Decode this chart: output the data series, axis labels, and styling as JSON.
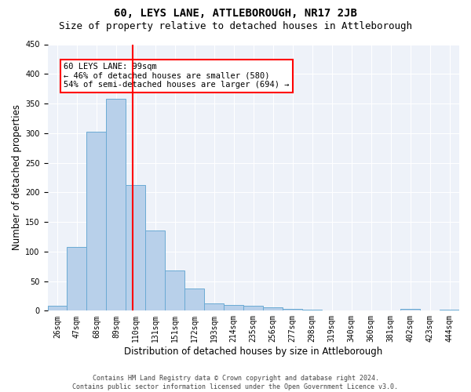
{
  "title": "60, LEYS LANE, ATTLEBOROUGH, NR17 2JB",
  "subtitle": "Size of property relative to detached houses in Attleborough",
  "xlabel": "Distribution of detached houses by size in Attleborough",
  "ylabel": "Number of detached properties",
  "footer_line1": "Contains HM Land Registry data © Crown copyright and database right 2024.",
  "footer_line2": "Contains public sector information licensed under the Open Government Licence v3.0.",
  "bar_labels": [
    "26sqm",
    "47sqm",
    "68sqm",
    "89sqm",
    "110sqm",
    "131sqm",
    "151sqm",
    "172sqm",
    "193sqm",
    "214sqm",
    "235sqm",
    "256sqm",
    "277sqm",
    "298sqm",
    "319sqm",
    "340sqm",
    "360sqm",
    "381sqm",
    "402sqm",
    "423sqm",
    "444sqm"
  ],
  "bar_values": [
    8,
    108,
    302,
    358,
    212,
    135,
    68,
    38,
    13,
    10,
    9,
    6,
    3,
    2,
    0,
    0,
    0,
    0,
    3,
    0,
    2
  ],
  "bar_color": "#b8d0ea",
  "bar_edge_color": "#6aaad4",
  "vline_x_index": 3.85,
  "vline_color": "red",
  "annotation_text": "60 LEYS LANE: 99sqm\n← 46% of detached houses are smaller (580)\n54% of semi-detached houses are larger (694) →",
  "annotation_box_color": "white",
  "annotation_box_edge": "red",
  "ylim": [
    0,
    450
  ],
  "yticks": [
    0,
    50,
    100,
    150,
    200,
    250,
    300,
    350,
    400,
    450
  ],
  "bg_color": "#eef2f9",
  "fig_bg_color": "white",
  "title_fontsize": 10,
  "subtitle_fontsize": 9,
  "xlabel_fontsize": 8.5,
  "ylabel_fontsize": 8.5,
  "tick_fontsize": 7,
  "annotation_fontsize": 7.5,
  "footer_fontsize": 6
}
